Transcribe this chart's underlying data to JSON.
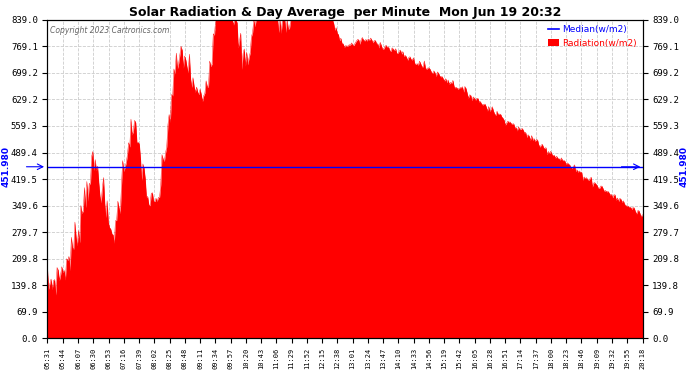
{
  "title": "Solar Radiation & Day Average  per Minute  Mon Jun 19 20:32",
  "copyright": "Copyright 2023 Cartronics.com",
  "median_value": 451.98,
  "ymax": 839.0,
  "ymin": 0.0,
  "yticks": [
    0.0,
    69.9,
    139.8,
    209.8,
    279.7,
    349.6,
    419.5,
    489.4,
    559.3,
    629.2,
    699.2,
    769.1,
    839.0
  ],
  "ytick_labels": [
    "0.0",
    "69.9",
    "139.8",
    "209.8",
    "279.7",
    "349.6",
    "419.5",
    "489.4",
    "559.3",
    "629.2",
    "699.2",
    "769.1",
    "839.0"
  ],
  "xtick_labels": [
    "05:31",
    "05:44",
    "06:07",
    "06:30",
    "06:53",
    "07:16",
    "07:39",
    "08:02",
    "08:25",
    "08:48",
    "09:11",
    "09:34",
    "09:57",
    "10:20",
    "10:43",
    "11:06",
    "11:29",
    "11:52",
    "12:15",
    "12:38",
    "13:01",
    "13:24",
    "13:47",
    "14:10",
    "14:33",
    "14:56",
    "15:19",
    "15:42",
    "16:05",
    "16:28",
    "16:51",
    "17:14",
    "17:37",
    "18:00",
    "18:23",
    "18:46",
    "19:09",
    "19:32",
    "19:55",
    "20:18"
  ],
  "background_color": "#ffffff",
  "fill_color": "#ff0000",
  "median_color": "#0000ff",
  "grid_color": "#cccccc",
  "title_color": "#000000",
  "legend_median_color": "#0000ff",
  "legend_radiation_color": "#ff0000",
  "median_label_color": "#0000ff",
  "figsize": [
    6.9,
    3.75
  ],
  "dpi": 100
}
